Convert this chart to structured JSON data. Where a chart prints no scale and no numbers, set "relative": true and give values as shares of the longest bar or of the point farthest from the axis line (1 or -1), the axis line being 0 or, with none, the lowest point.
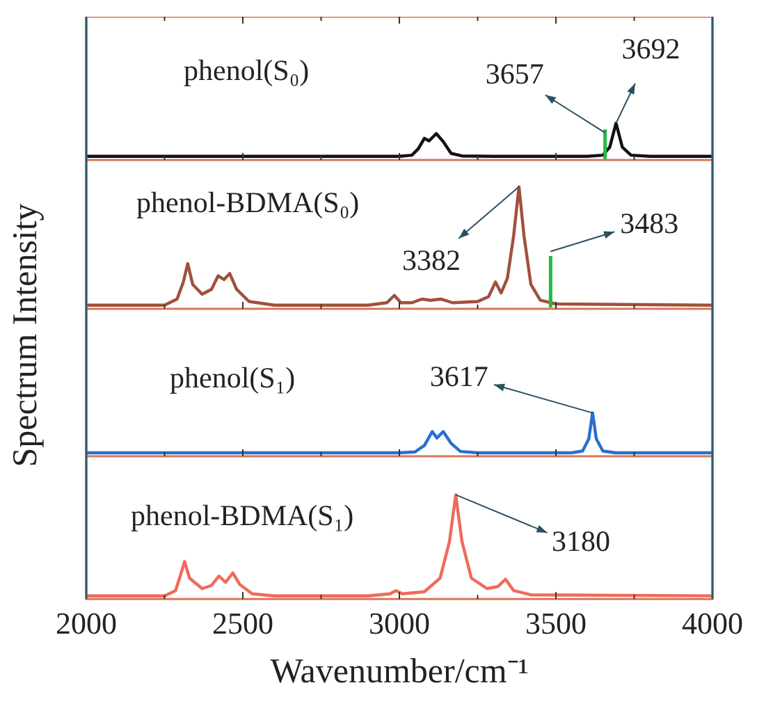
{
  "chart_data": [
    {
      "type": "line",
      "relative": true,
      "xlim": [
        2000,
        4000
      ],
      "xticks": [
        2000,
        {
          "value": 2250,
          "label": null
        },
        2500,
        {
          "value": 2750,
          "label": null
        },
        3000,
        {
          "value": 3250,
          "label": null
        },
        3500,
        {
          "value": 3750,
          "label": null
        },
        4000
      ],
      "tick_labels": false,
      "x": [
        2000,
        3000,
        3040,
        3060,
        3080,
        3095,
        3118,
        3140,
        3165,
        3200,
        3300,
        3600,
        3650,
        3672,
        3692,
        3712,
        3740,
        3800,
        4000
      ],
      "series": [
        {
          "color": "#111111",
          "values": [
            0.1,
            0.1,
            0.13,
            0.3,
            0.59,
            0.52,
            0.72,
            0.5,
            0.18,
            0.11,
            0.1,
            0.1,
            0.13,
            0.35,
            1.0,
            0.35,
            0.13,
            0.1,
            0.1
          ]
        }
      ],
      "ref_lines": [
        {
          "axis": "x",
          "value": 3657,
          "color": "#22bb44"
        }
      ],
      "annotations": [
        "phenol(S₀)",
        {
          "text": "3657",
          "x": 3657,
          "y": 0.74
        },
        {
          "text": "3692",
          "x": 3692,
          "y": 1.0
        }
      ]
    },
    {
      "type": "line",
      "relative": true,
      "xlim": [
        2000,
        4000
      ],
      "xticks": [
        2000,
        {
          "value": 2250,
          "label": null
        },
        2500,
        {
          "value": 2750,
          "label": null
        },
        3000,
        {
          "value": 3250,
          "label": null
        },
        3500,
        {
          "value": 3750,
          "label": null
        },
        4000
      ],
      "tick_labels": false,
      "x": [
        2000,
        2250,
        2290,
        2310,
        2324,
        2340,
        2370,
        2400,
        2421,
        2440,
        2458,
        2480,
        2520,
        2600,
        2900,
        2960,
        2984,
        3005,
        3040,
        3072,
        3100,
        3132,
        3170,
        3250,
        3285,
        3307,
        3325,
        3345,
        3365,
        3382,
        3398,
        3420,
        3450,
        3500,
        4000
      ],
      "series": [
        {
          "color": "#a0503c",
          "values": [
            0.03,
            0.03,
            0.08,
            0.22,
            0.37,
            0.2,
            0.12,
            0.16,
            0.27,
            0.24,
            0.29,
            0.16,
            0.06,
            0.03,
            0.03,
            0.05,
            0.11,
            0.05,
            0.05,
            0.08,
            0.07,
            0.08,
            0.05,
            0.06,
            0.1,
            0.22,
            0.13,
            0.25,
            0.6,
            1.0,
            0.6,
            0.2,
            0.07,
            0.04,
            0.03
          ]
        }
      ],
      "ref_lines": [
        {
          "axis": "x",
          "value": 3483,
          "color": "#22bb44"
        }
      ],
      "annotations": [
        "phenol-BDMA(S₀)",
        {
          "text": "3382",
          "x": 3382,
          "y": 1.0
        },
        {
          "text": "3483",
          "x": 3483,
          "y": 0.47
        }
      ]
    },
    {
      "type": "line",
      "relative": true,
      "xlim": [
        2000,
        4000
      ],
      "xticks": [
        2000,
        {
          "value": 2250,
          "label": null
        },
        2500,
        {
          "value": 2750,
          "label": null
        },
        3000,
        {
          "value": 3250,
          "label": null
        },
        3500,
        {
          "value": 3750,
          "label": null
        },
        4000
      ],
      "tick_labels": false,
      "x": [
        2000,
        3000,
        3050,
        3080,
        3105,
        3120,
        3140,
        3165,
        3195,
        3250,
        3550,
        3585,
        3605,
        3617,
        3629,
        3650,
        3690,
        4000
      ],
      "series": [
        {
          "color": "#2a6fd0",
          "values": [
            0.08,
            0.08,
            0.1,
            0.25,
            0.57,
            0.42,
            0.57,
            0.3,
            0.11,
            0.08,
            0.08,
            0.12,
            0.4,
            1.0,
            0.4,
            0.12,
            0.08,
            0.08
          ]
        }
      ],
      "annotations": [
        "phenol(S₁)",
        {
          "text": "3617",
          "x": 3617,
          "y": 1.0
        }
      ]
    },
    {
      "type": "line",
      "relative": true,
      "xlim": [
        2000,
        4000
      ],
      "xticks": [
        2000,
        {
          "value": 2250,
          "label": null
        },
        2500,
        {
          "value": 2750,
          "label": null
        },
        3000,
        {
          "value": 3250,
          "label": null
        },
        3500,
        {
          "value": 3750,
          "label": null
        },
        4000
      ],
      "tick_labels": "x",
      "xlabel": "Wavenumber/cm⁻¹",
      "ylabel": "Spectrum Intensity",
      "x": [
        2000,
        2250,
        2285,
        2300,
        2314,
        2330,
        2370,
        2400,
        2424,
        2445,
        2468,
        2490,
        2530,
        2600,
        2900,
        2970,
        2989,
        3010,
        3080,
        3130,
        3160,
        3180,
        3200,
        3230,
        3280,
        3315,
        3339,
        3365,
        3420,
        4000
      ],
      "series": [
        {
          "color": "#f06a5a",
          "values": [
            0.03,
            0.03,
            0.08,
            0.22,
            0.36,
            0.2,
            0.1,
            0.13,
            0.22,
            0.16,
            0.25,
            0.14,
            0.05,
            0.03,
            0.03,
            0.05,
            0.08,
            0.05,
            0.07,
            0.2,
            0.55,
            1.0,
            0.55,
            0.2,
            0.1,
            0.12,
            0.19,
            0.08,
            0.04,
            0.03
          ]
        }
      ],
      "annotations": [
        "phenol-BDMA(S₁)",
        {
          "text": "3180",
          "x": 3180,
          "y": 1.0
        }
      ]
    }
  ]
}
